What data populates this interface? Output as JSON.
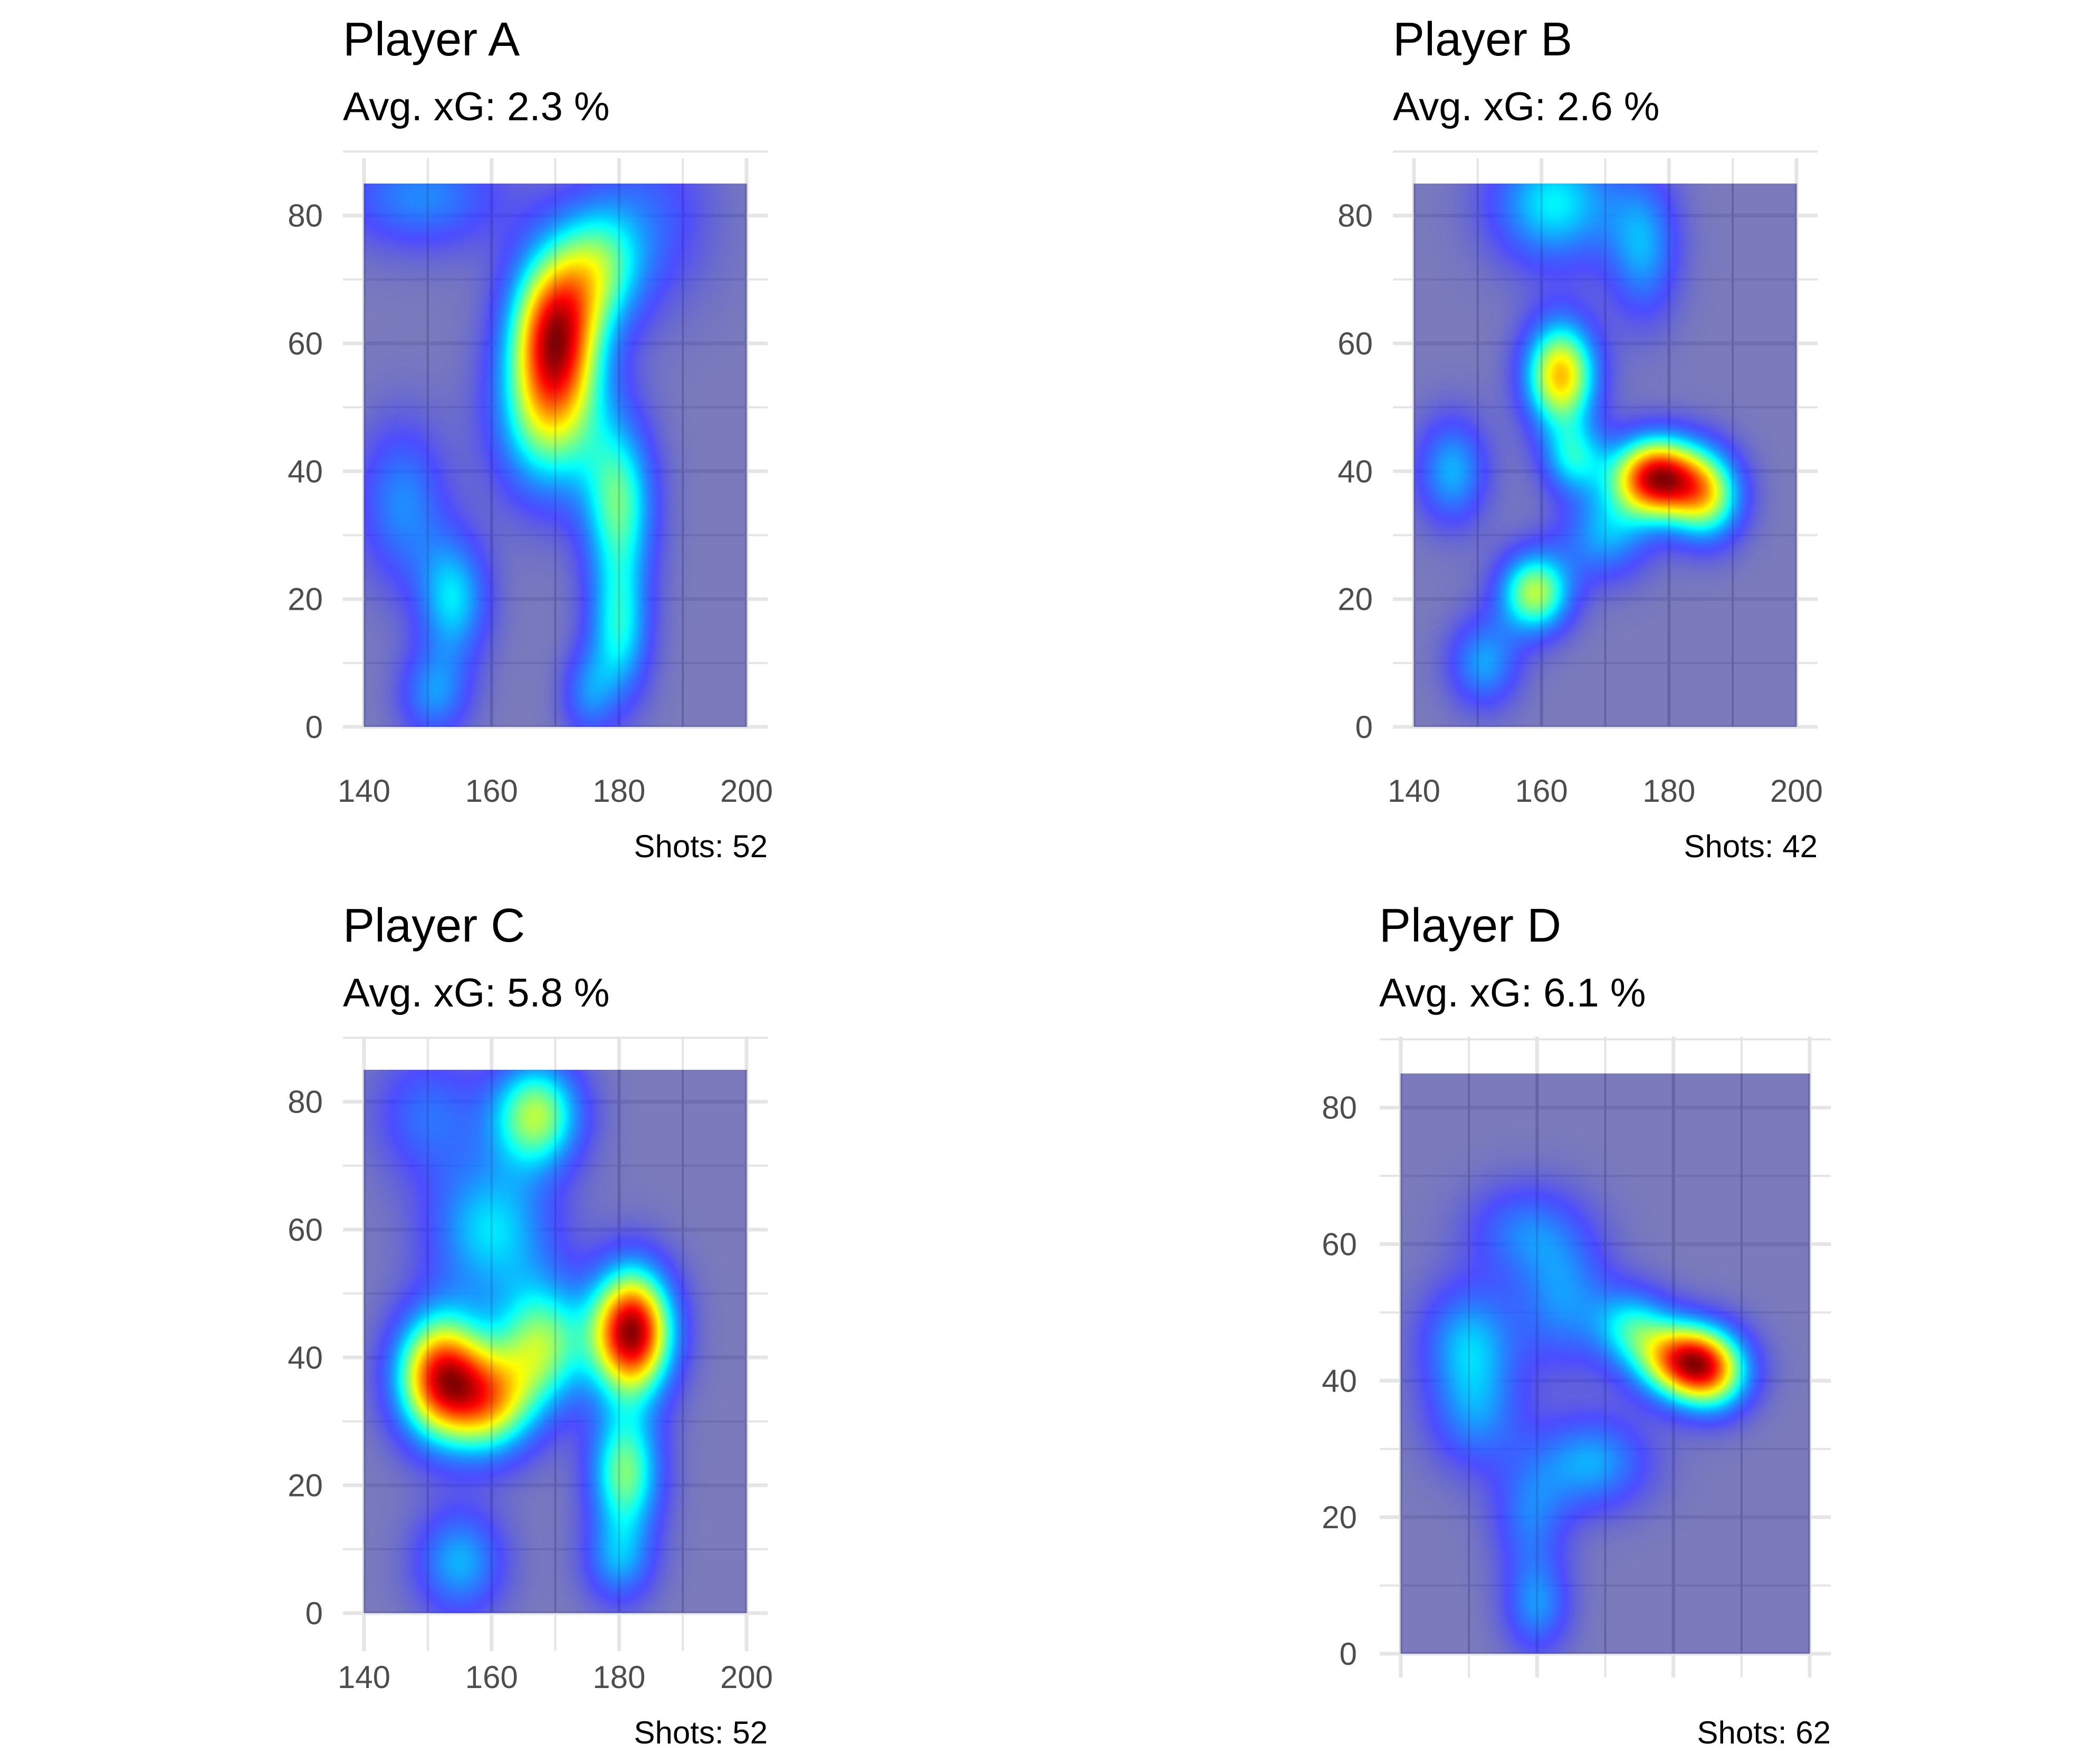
{
  "colors": {
    "background": "#ffffff",
    "grid": "#e5e5e5",
    "tick_text": "#4d4d4d",
    "title_text": "#000000",
    "palette_jet": [
      "#00007f",
      "#0000ff",
      "#007fff",
      "#00ffff",
      "#7fff7f",
      "#ffff00",
      "#ff7f00",
      "#ff0000",
      "#7f0000"
    ]
  },
  "chart_data": [
    {
      "type": "heatmap",
      "title": "Player A",
      "subtitle": "Avg. xG: 2.3 %",
      "caption": "Shots: 52",
      "xlim": [
        140,
        200
      ],
      "ylim": [
        0,
        85
      ],
      "x_ticks": [
        "140",
        "160",
        "180",
        "200"
      ],
      "y_ticks": [
        "0",
        "20",
        "40",
        "60",
        "80"
      ],
      "show_x_tick_labels": true,
      "density_peaks": [
        {
          "x": 170,
          "y": 62,
          "sx": 5,
          "sy": 9,
          "w": 1.0
        },
        {
          "x": 169,
          "y": 48,
          "sx": 6,
          "sy": 9,
          "w": 0.55
        },
        {
          "x": 177,
          "y": 72,
          "sx": 5,
          "sy": 7,
          "w": 0.45
        },
        {
          "x": 180,
          "y": 35,
          "sx": 4,
          "sy": 9,
          "w": 0.55
        },
        {
          "x": 180,
          "y": 15,
          "sx": 3.5,
          "sy": 8,
          "w": 0.45
        },
        {
          "x": 175,
          "y": 5,
          "sx": 3,
          "sy": 5,
          "w": 0.25
        },
        {
          "x": 154,
          "y": 20,
          "sx": 4,
          "sy": 7,
          "w": 0.42
        },
        {
          "x": 151,
          "y": 5,
          "sx": 4,
          "sy": 5,
          "w": 0.3
        },
        {
          "x": 146,
          "y": 35,
          "sx": 5,
          "sy": 9,
          "w": 0.3
        },
        {
          "x": 149,
          "y": 83,
          "sx": 9,
          "sy": 6,
          "w": 0.3
        },
        {
          "x": 185,
          "y": 80,
          "sx": 7,
          "sy": 10,
          "w": 0.2
        }
      ]
    },
    {
      "type": "heatmap",
      "title": "Player B",
      "subtitle": "Avg. xG: 2.6 %",
      "caption": "Shots: 42",
      "xlim": [
        140,
        200
      ],
      "ylim": [
        0,
        85
      ],
      "x_ticks": [
        "140",
        "160",
        "180",
        "200"
      ],
      "y_ticks": [
        "0",
        "20",
        "40",
        "60",
        "80"
      ],
      "show_x_tick_labels": true,
      "density_peaks": [
        {
          "x": 178,
          "y": 39,
          "sx": 5,
          "sy": 4.5,
          "w": 1.0
        },
        {
          "x": 186,
          "y": 36,
          "sx": 4,
          "sy": 5,
          "w": 0.55
        },
        {
          "x": 163,
          "y": 55,
          "sx": 4,
          "sy": 6,
          "w": 0.75
        },
        {
          "x": 165,
          "y": 42,
          "sx": 3.5,
          "sy": 4,
          "w": 0.35
        },
        {
          "x": 159,
          "y": 21,
          "sx": 4,
          "sy": 4.5,
          "w": 0.6
        },
        {
          "x": 151,
          "y": 10,
          "sx": 4,
          "sy": 5,
          "w": 0.3
        },
        {
          "x": 146,
          "y": 40,
          "sx": 4,
          "sy": 6,
          "w": 0.32
        },
        {
          "x": 162,
          "y": 82,
          "sx": 7,
          "sy": 7,
          "w": 0.4
        },
        {
          "x": 176,
          "y": 75,
          "sx": 4,
          "sy": 8,
          "w": 0.3
        },
        {
          "x": 170,
          "y": 30,
          "sx": 5,
          "sy": 5,
          "w": 0.3
        }
      ]
    },
    {
      "type": "heatmap",
      "title": "Player C",
      "subtitle": "Avg. xG: 5.8 %",
      "caption": "Shots: 52",
      "xlim": [
        140,
        200
      ],
      "ylim": [
        0,
        85
      ],
      "x_ticks": [
        "140",
        "160",
        "180",
        "200"
      ],
      "y_ticks": [
        "0",
        "20",
        "40",
        "60",
        "80"
      ],
      "show_x_tick_labels": true,
      "density_peaks": [
        {
          "x": 182,
          "y": 44,
          "sx": 4.5,
          "sy": 7,
          "w": 1.0
        },
        {
          "x": 152,
          "y": 37,
          "sx": 5,
          "sy": 7,
          "w": 0.85
        },
        {
          "x": 160,
          "y": 33,
          "sx": 5,
          "sy": 6,
          "w": 0.55
        },
        {
          "x": 168,
          "y": 42,
          "sx": 5,
          "sy": 7,
          "w": 0.5
        },
        {
          "x": 181,
          "y": 22,
          "sx": 4,
          "sy": 7,
          "w": 0.5
        },
        {
          "x": 167,
          "y": 78,
          "sx": 5,
          "sy": 6,
          "w": 0.55
        },
        {
          "x": 160,
          "y": 60,
          "sx": 7,
          "sy": 8,
          "w": 0.35
        },
        {
          "x": 155,
          "y": 8,
          "sx": 5,
          "sy": 6,
          "w": 0.3
        },
        {
          "x": 180,
          "y": 8,
          "sx": 4,
          "sy": 5,
          "w": 0.25
        },
        {
          "x": 150,
          "y": 78,
          "sx": 6,
          "sy": 7,
          "w": 0.2
        }
      ]
    },
    {
      "type": "heatmap",
      "title": "Player D",
      "subtitle": "Avg. xG: 6.1 %",
      "caption": "Shots: 62",
      "xlim": [
        140,
        200
      ],
      "ylim": [
        0,
        85
      ],
      "x_ticks": [
        "",
        "",
        "",
        ""
      ],
      "y_ticks": [
        "0",
        "20",
        "40",
        "60",
        "80"
      ],
      "show_x_tick_labels": false,
      "density_peaks": [
        {
          "x": 182,
          "y": 43,
          "sx": 5,
          "sy": 4,
          "w": 1.0
        },
        {
          "x": 174,
          "y": 48,
          "sx": 4,
          "sy": 4,
          "w": 0.4
        },
        {
          "x": 186,
          "y": 40,
          "sx": 4,
          "sy": 4,
          "w": 0.4
        },
        {
          "x": 164,
          "y": 52,
          "sx": 5,
          "sy": 7,
          "w": 0.3
        },
        {
          "x": 150,
          "y": 46,
          "sx": 5,
          "sy": 6,
          "w": 0.35
        },
        {
          "x": 151,
          "y": 35,
          "sx": 5,
          "sy": 6,
          "w": 0.28
        },
        {
          "x": 168,
          "y": 28,
          "sx": 6,
          "sy": 5,
          "w": 0.35
        },
        {
          "x": 159,
          "y": 20,
          "sx": 4,
          "sy": 6,
          "w": 0.25
        },
        {
          "x": 160,
          "y": 7,
          "sx": 3.5,
          "sy": 5,
          "w": 0.3
        },
        {
          "x": 158,
          "y": 62,
          "sx": 6,
          "sy": 5,
          "w": 0.25
        }
      ]
    }
  ]
}
